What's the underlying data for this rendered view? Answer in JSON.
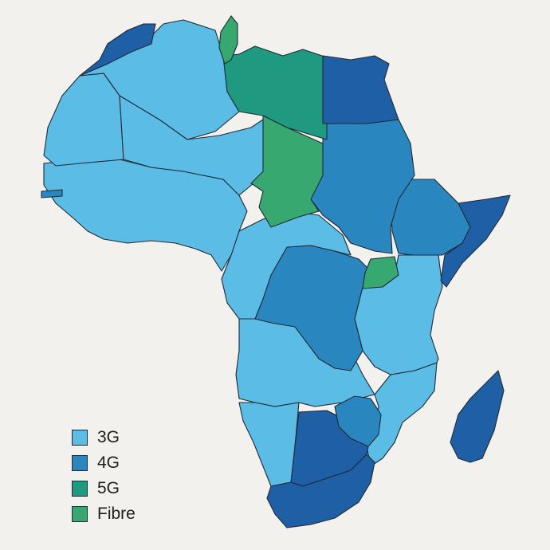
{
  "categories": {
    "3g": {
      "label": "3G",
      "color": "#5bbde6"
    },
    "4g": {
      "label": "4G",
      "color": "#2a86bf"
    },
    "4g_dark": {
      "color": "#1f5fa6"
    },
    "5g": {
      "label": "5G",
      "color": "#1f9a80"
    },
    "fibre": {
      "label": "Fibre",
      "color": "#36a870"
    }
  },
  "legend": [
    {
      "key": "3g"
    },
    {
      "key": "4g"
    },
    {
      "key": "5g"
    },
    {
      "key": "fibre"
    }
  ],
  "regions": [
    {
      "name": "morocco",
      "category": "4g_dark"
    },
    {
      "name": "algeria",
      "category": "3g"
    },
    {
      "name": "tunisia",
      "category": "fibre"
    },
    {
      "name": "libya",
      "category": "5g"
    },
    {
      "name": "egypt",
      "category": "4g_dark"
    },
    {
      "name": "western-sahara-mauritania",
      "category": "3g"
    },
    {
      "name": "mali-niger",
      "category": "3g"
    },
    {
      "name": "chad",
      "category": "fibre"
    },
    {
      "name": "sudan-south-sudan",
      "category": "4g"
    },
    {
      "name": "ethiopia",
      "category": "4g"
    },
    {
      "name": "somalia",
      "category": "4g_dark"
    },
    {
      "name": "west-africa",
      "category": "3g"
    },
    {
      "name": "gambia",
      "category": "4g"
    },
    {
      "name": "cameroon-car",
      "category": "3g"
    },
    {
      "name": "dr-congo",
      "category": "4g"
    },
    {
      "name": "uganda",
      "category": "fibre"
    },
    {
      "name": "kenya-tanzania",
      "category": "3g"
    },
    {
      "name": "angola-zambia",
      "category": "3g"
    },
    {
      "name": "namibia",
      "category": "3g"
    },
    {
      "name": "botswana",
      "category": "4g_dark"
    },
    {
      "name": "zimbabwe",
      "category": "4g"
    },
    {
      "name": "mozambique",
      "category": "3g"
    },
    {
      "name": "south-africa",
      "category": "4g_dark"
    },
    {
      "name": "madagascar",
      "category": "4g_dark"
    }
  ]
}
